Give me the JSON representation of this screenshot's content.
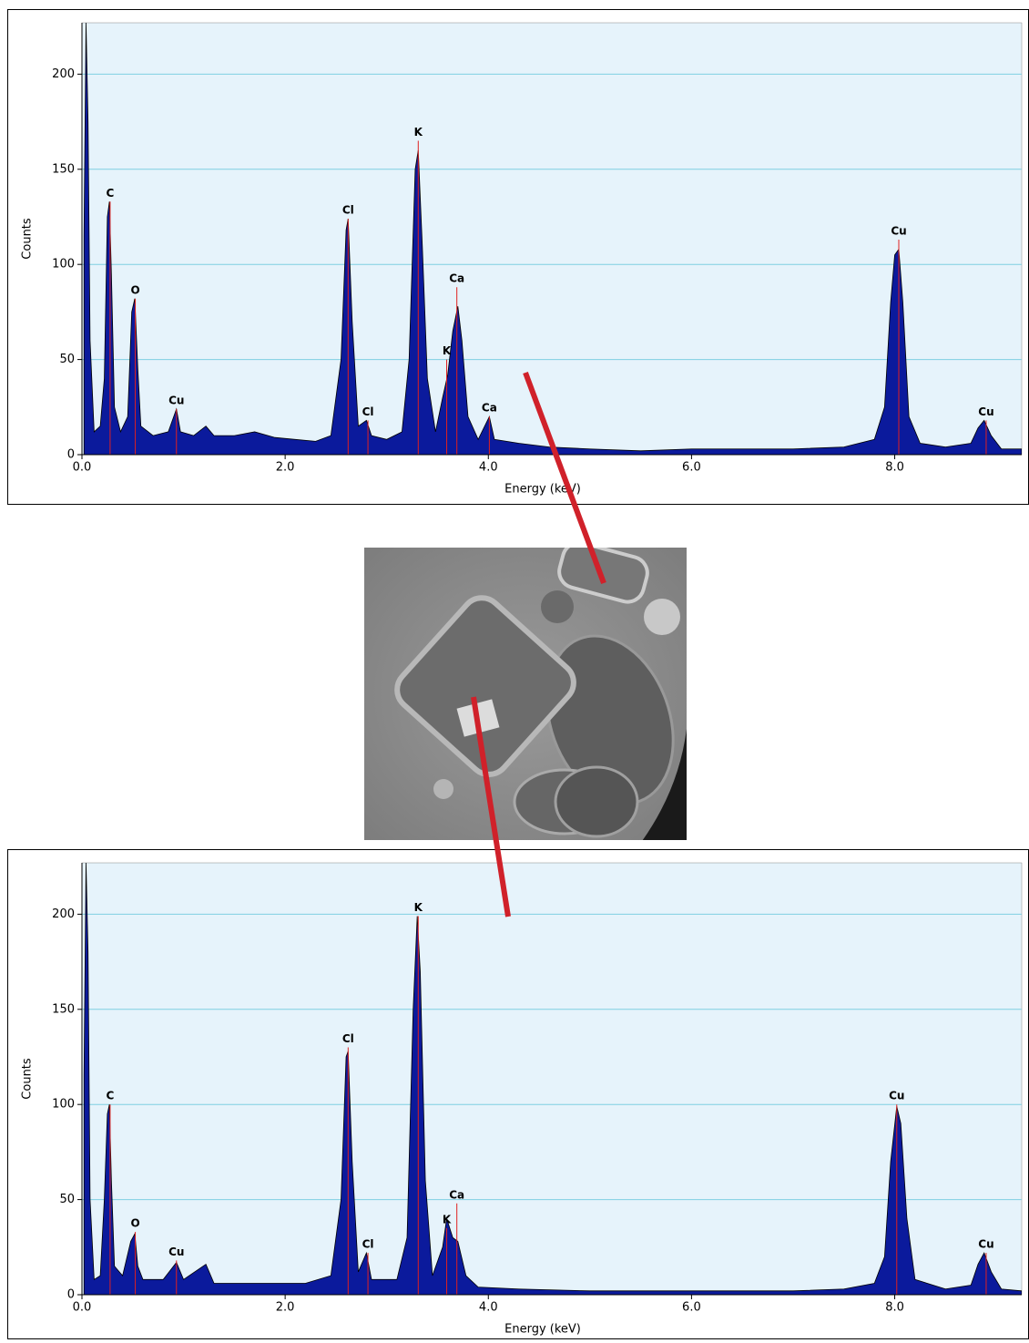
{
  "chart_data": [
    {
      "type": "area",
      "x_label": "Energy (keV)",
      "y_label": "Counts",
      "xlim": [
        0,
        9.25
      ],
      "ylim": [
        0,
        227
      ],
      "xticks": [
        {
          "value": 0,
          "label": "0.0"
        },
        {
          "value": 2,
          "label": "2.0"
        },
        {
          "value": 4,
          "label": "4.0"
        },
        {
          "value": 6,
          "label": "6.0"
        },
        {
          "value": 8,
          "label": "8.0"
        }
      ],
      "yticks": [
        0,
        50,
        100,
        150,
        200
      ],
      "grid": true,
      "color": "#0b1a9c",
      "peak_color": "#e02020",
      "x": [
        0.02,
        0.04,
        0.06,
        0.08,
        0.12,
        0.18,
        0.22,
        0.25,
        0.27,
        0.29,
        0.32,
        0.38,
        0.45,
        0.49,
        0.52,
        0.55,
        0.58,
        0.7,
        0.85,
        0.93,
        0.97,
        1.1,
        1.22,
        1.3,
        1.5,
        1.7,
        1.9,
        2.1,
        2.3,
        2.45,
        2.55,
        2.6,
        2.62,
        2.66,
        2.72,
        2.8,
        2.85,
        3.0,
        3.15,
        3.22,
        3.28,
        3.31,
        3.35,
        3.4,
        3.48,
        3.55,
        3.6,
        3.65,
        3.7,
        3.74,
        3.8,
        3.9,
        4.01,
        4.06,
        4.3,
        4.6,
        5.0,
        5.5,
        6.0,
        6.5,
        7.0,
        7.5,
        7.8,
        7.9,
        7.96,
        8.0,
        8.04,
        8.08,
        8.14,
        8.25,
        8.5,
        8.75,
        8.82,
        8.88,
        8.95,
        9.05,
        9.25
      ],
      "values": [
        115,
        227,
        175,
        60,
        12,
        15,
        40,
        125,
        133,
        95,
        25,
        12,
        20,
        75,
        82,
        45,
        15,
        10,
        12,
        24,
        12,
        10,
        15,
        10,
        10,
        12,
        9,
        8,
        7,
        10,
        50,
        118,
        124,
        70,
        15,
        18,
        10,
        8,
        12,
        50,
        150,
        160,
        110,
        40,
        12,
        30,
        42,
        65,
        78,
        60,
        20,
        8,
        20,
        8,
        6,
        4,
        3,
        2,
        3,
        3,
        3,
        4,
        8,
        25,
        80,
        105,
        108,
        80,
        20,
        6,
        4,
        6,
        14,
        18,
        10,
        3,
        3
      ],
      "peaks": [
        {
          "label": "C",
          "x": 0.277,
          "y": 133
        },
        {
          "label": "O",
          "x": 0.525,
          "y": 82
        },
        {
          "label": "Cu",
          "x": 0.93,
          "y": 24
        },
        {
          "label": "Cl",
          "x": 2.62,
          "y": 124
        },
        {
          "label": "Cl",
          "x": 2.815,
          "y": 18
        },
        {
          "label": "K",
          "x": 3.31,
          "y": 165
        },
        {
          "label": "K",
          "x": 3.59,
          "y": 50
        },
        {
          "label": "Ca",
          "x": 3.69,
          "y": 88
        },
        {
          "label": "Ca",
          "x": 4.01,
          "y": 20
        },
        {
          "label": "Cu",
          "x": 8.04,
          "y": 113
        },
        {
          "label": "Cu",
          "x": 8.9,
          "y": 18
        }
      ]
    },
    {
      "type": "area",
      "x_label": "Energy (keV)",
      "y_label": "Counts",
      "xlim": [
        0,
        9.25
      ],
      "ylim": [
        0,
        227
      ],
      "xticks": [
        {
          "value": 0,
          "label": "0.0"
        },
        {
          "value": 2,
          "label": "2.0"
        },
        {
          "value": 4,
          "label": "4.0"
        },
        {
          "value": 6,
          "label": "6.0"
        },
        {
          "value": 8,
          "label": "8.0"
        }
      ],
      "yticks": [
        0,
        50,
        100,
        150,
        200
      ],
      "grid": true,
      "color": "#0b1a9c",
      "peak_color": "#e02020",
      "x": [
        0.02,
        0.04,
        0.06,
        0.08,
        0.12,
        0.18,
        0.22,
        0.25,
        0.27,
        0.29,
        0.32,
        0.4,
        0.48,
        0.52,
        0.55,
        0.6,
        0.8,
        0.93,
        1.0,
        1.22,
        1.3,
        1.6,
        1.9,
        2.2,
        2.45,
        2.55,
        2.6,
        2.62,
        2.66,
        2.72,
        2.8,
        2.85,
        3.1,
        3.2,
        3.26,
        3.3,
        3.33,
        3.38,
        3.45,
        3.55,
        3.59,
        3.65,
        3.7,
        3.78,
        3.9,
        4.3,
        5.0,
        6.0,
        7.0,
        7.5,
        7.8,
        7.9,
        7.96,
        8.02,
        8.06,
        8.12,
        8.2,
        8.5,
        8.75,
        8.82,
        8.88,
        8.95,
        9.05,
        9.25
      ],
      "values": [
        115,
        227,
        180,
        50,
        8,
        10,
        50,
        95,
        100,
        60,
        15,
        10,
        28,
        32,
        15,
        8,
        8,
        17,
        8,
        16,
        6,
        6,
        6,
        6,
        10,
        50,
        125,
        128,
        70,
        12,
        22,
        8,
        8,
        30,
        150,
        199,
        170,
        60,
        10,
        25,
        40,
        30,
        28,
        10,
        4,
        3,
        2,
        2,
        2,
        3,
        6,
        20,
        70,
        99,
        90,
        40,
        8,
        3,
        5,
        16,
        22,
        12,
        3,
        2
      ],
      "peaks": [
        {
          "label": "C",
          "x": 0.277,
          "y": 100
        },
        {
          "label": "O",
          "x": 0.525,
          "y": 33
        },
        {
          "label": "Cu",
          "x": 0.93,
          "y": 18
        },
        {
          "label": "Cl",
          "x": 2.62,
          "y": 130
        },
        {
          "label": "Cl",
          "x": 2.815,
          "y": 22
        },
        {
          "label": "K",
          "x": 3.31,
          "y": 199
        },
        {
          "label": "K",
          "x": 3.59,
          "y": 35
        },
        {
          "label": "Ca",
          "x": 3.69,
          "y": 48
        },
        {
          "label": "Cu",
          "x": 8.02,
          "y": 100
        },
        {
          "label": "Cu",
          "x": 8.9,
          "y": 22
        }
      ]
    }
  ]
}
